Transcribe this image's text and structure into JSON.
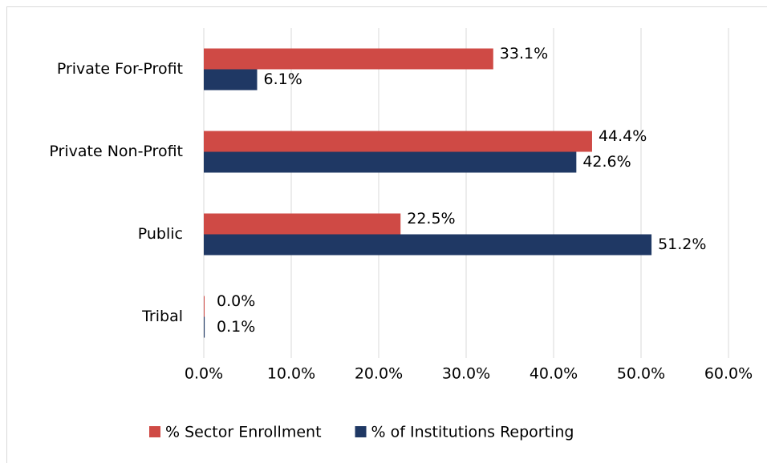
{
  "chart_data": {
    "type": "barh",
    "categories": [
      "Private For-Profit",
      "Private Non-Profit",
      "Public",
      "Tribal"
    ],
    "series": [
      {
        "name": "% Sector Enrollment",
        "color": "#cf4a45",
        "values": [
          33.1,
          44.4,
          22.5,
          0.0
        ],
        "value_labels": [
          "33.1%",
          "44.4%",
          "22.5%",
          "0.0%"
        ]
      },
      {
        "name": "% of Institutions Reporting",
        "color": "#1f3864",
        "values": [
          6.1,
          42.6,
          51.2,
          0.1
        ],
        "value_labels": [
          "6.1%",
          "42.6%",
          "51.2%",
          "0.1%"
        ]
      }
    ],
    "xlim": [
      0,
      60
    ],
    "xticks": [
      {
        "value": 0,
        "label": "0.0%"
      },
      {
        "value": 10,
        "label": "10.0%"
      },
      {
        "value": 20,
        "label": "20.0%"
      },
      {
        "value": 30,
        "label": "30.0%"
      },
      {
        "value": 40,
        "label": "40.0%"
      },
      {
        "value": 50,
        "label": "50.0%"
      },
      {
        "value": 60,
        "label": "60.0%"
      }
    ],
    "grid": true,
    "legend": "bottom"
  }
}
